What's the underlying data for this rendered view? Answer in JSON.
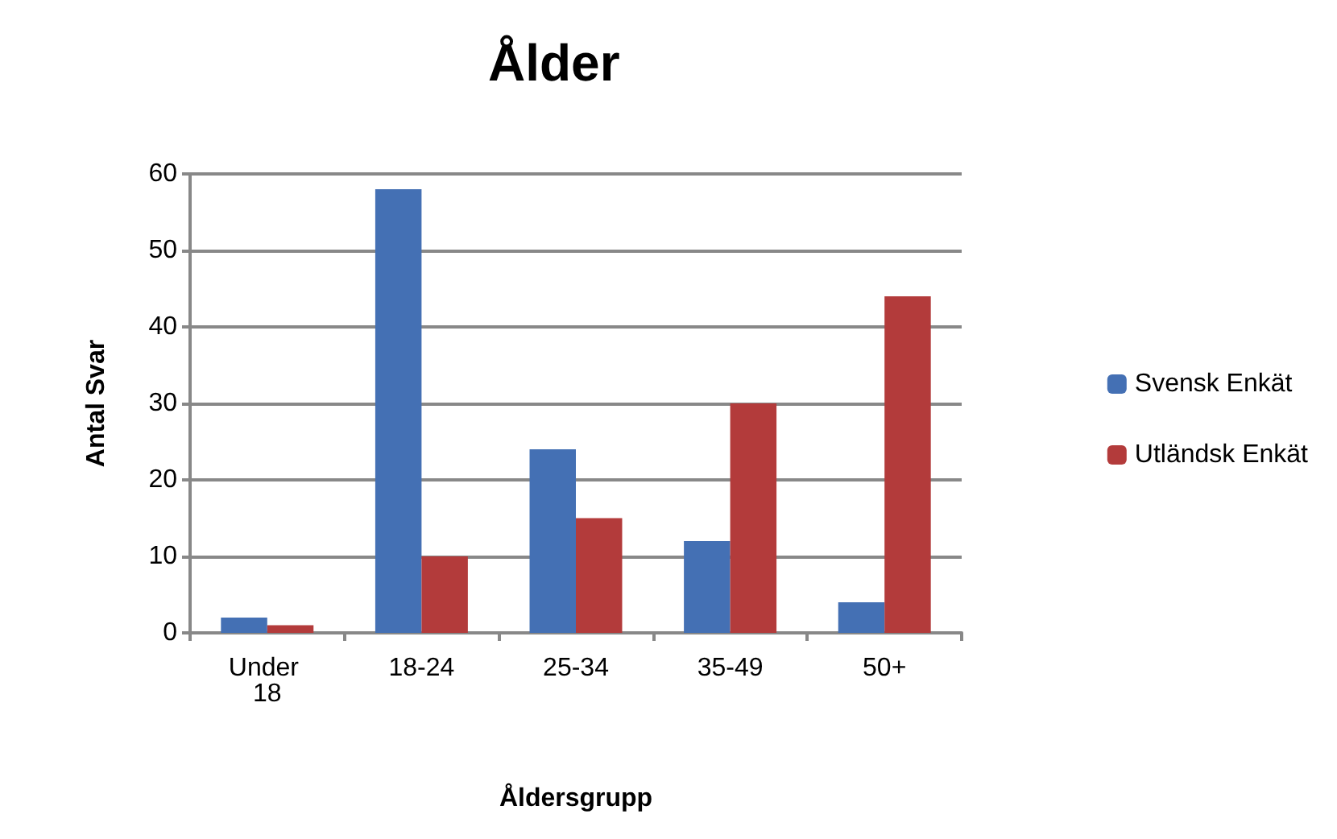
{
  "chart_data": {
    "type": "bar",
    "title": "Ålder",
    "xlabel": "Åldersgrupp",
    "ylabel": "Antal Svar",
    "categories": [
      "Under 18",
      "18-24",
      "25-34",
      "35-49",
      "50+"
    ],
    "series": [
      {
        "name": "Svensk Enkät",
        "color": "#4470b4",
        "values": [
          2,
          58,
          24,
          12,
          4
        ]
      },
      {
        "name": "Utländsk Enkät",
        "color": "#b33b3b",
        "values": [
          1,
          10,
          15,
          30,
          44
        ]
      }
    ],
    "ylim": [
      0,
      60
    ],
    "yticks": [
      0,
      10,
      20,
      30,
      40,
      50,
      60
    ],
    "grid": "y",
    "legend": "right"
  }
}
